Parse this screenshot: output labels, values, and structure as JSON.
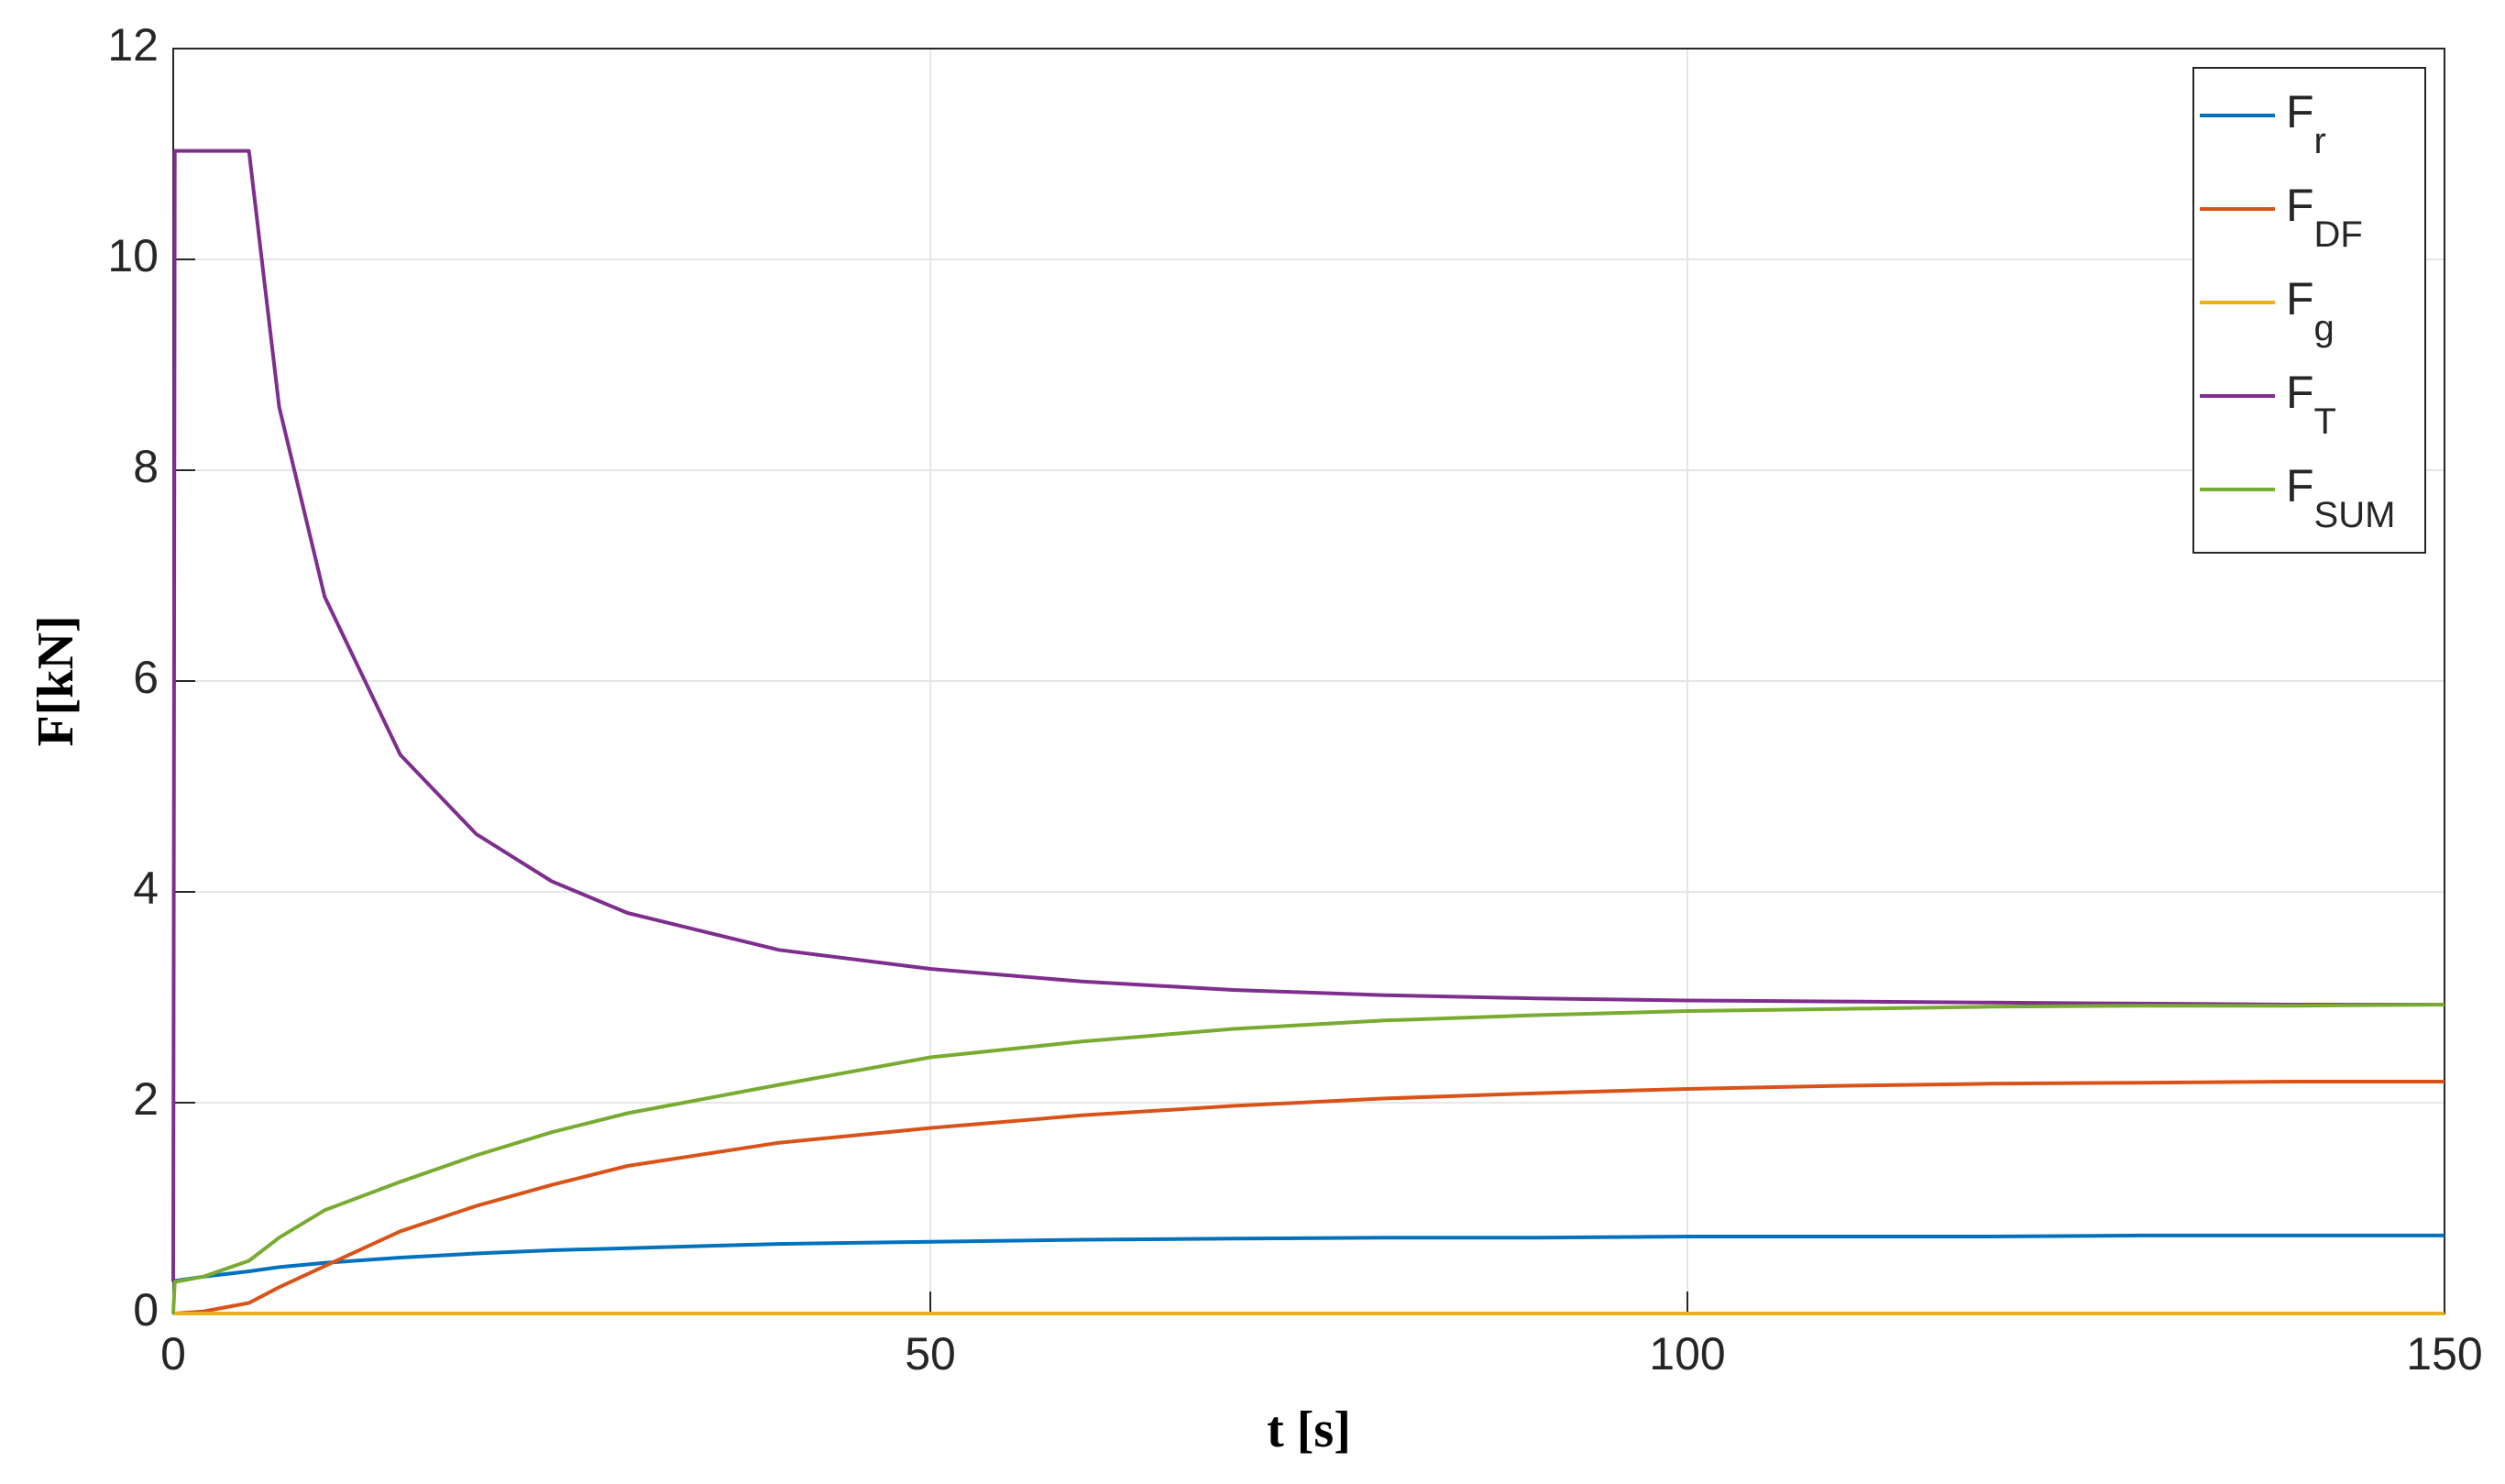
{
  "chart_data": {
    "type": "line",
    "xlabel": "t [s]",
    "ylabel": "F[kN]",
    "x": [
      0,
      0.1,
      2,
      5,
      7,
      10,
      15,
      20,
      25,
      30,
      40,
      50,
      60,
      70,
      80,
      90,
      100,
      110,
      120,
      130,
      140,
      150
    ],
    "series": [
      {
        "name": "Fr",
        "color": "#0072bd",
        "values": [
          0.3,
          0.31,
          0.35,
          0.4,
          0.44,
          0.48,
          0.53,
          0.57,
          0.6,
          0.62,
          0.66,
          0.68,
          0.7,
          0.71,
          0.72,
          0.72,
          0.73,
          0.73,
          0.73,
          0.74,
          0.74,
          0.74
        ]
      },
      {
        "name": "FDF",
        "color": "#d95319",
        "values": [
          0,
          0,
          0.02,
          0.1,
          0.25,
          0.45,
          0.78,
          1.02,
          1.22,
          1.4,
          1.62,
          1.76,
          1.88,
          1.97,
          2.04,
          2.09,
          2.13,
          2.16,
          2.18,
          2.19,
          2.2,
          2.2
        ]
      },
      {
        "name": "Fg",
        "color": "#edb120",
        "values": [
          0,
          0,
          0,
          0,
          0,
          0,
          0,
          0,
          0,
          0,
          0,
          0,
          0,
          0,
          0,
          0,
          0,
          0,
          0,
          0,
          0,
          0
        ]
      },
      {
        "name": "FT",
        "color": "#7e2f8e",
        "values": [
          0.3,
          11.03,
          11.03,
          11.03,
          8.6,
          6.8,
          5.3,
          4.55,
          4.1,
          3.8,
          3.45,
          3.27,
          3.15,
          3.07,
          3.02,
          2.99,
          2.97,
          2.96,
          2.95,
          2.94,
          2.93,
          2.93
        ]
      },
      {
        "name": "FSUM",
        "color": "#77ac30",
        "values": [
          0,
          0.3,
          0.35,
          0.5,
          0.72,
          0.98,
          1.25,
          1.5,
          1.72,
          1.9,
          2.17,
          2.43,
          2.58,
          2.7,
          2.78,
          2.83,
          2.87,
          2.89,
          2.91,
          2.92,
          2.92,
          2.93
        ]
      }
    ],
    "xlim": [
      0,
      150
    ],
    "xticks": [
      0,
      50,
      100,
      150
    ],
    "ylim": [
      0,
      12
    ],
    "yticks": [
      0,
      2,
      4,
      6,
      8,
      10,
      12
    ],
    "grid": true,
    "legend": "upper right"
  }
}
